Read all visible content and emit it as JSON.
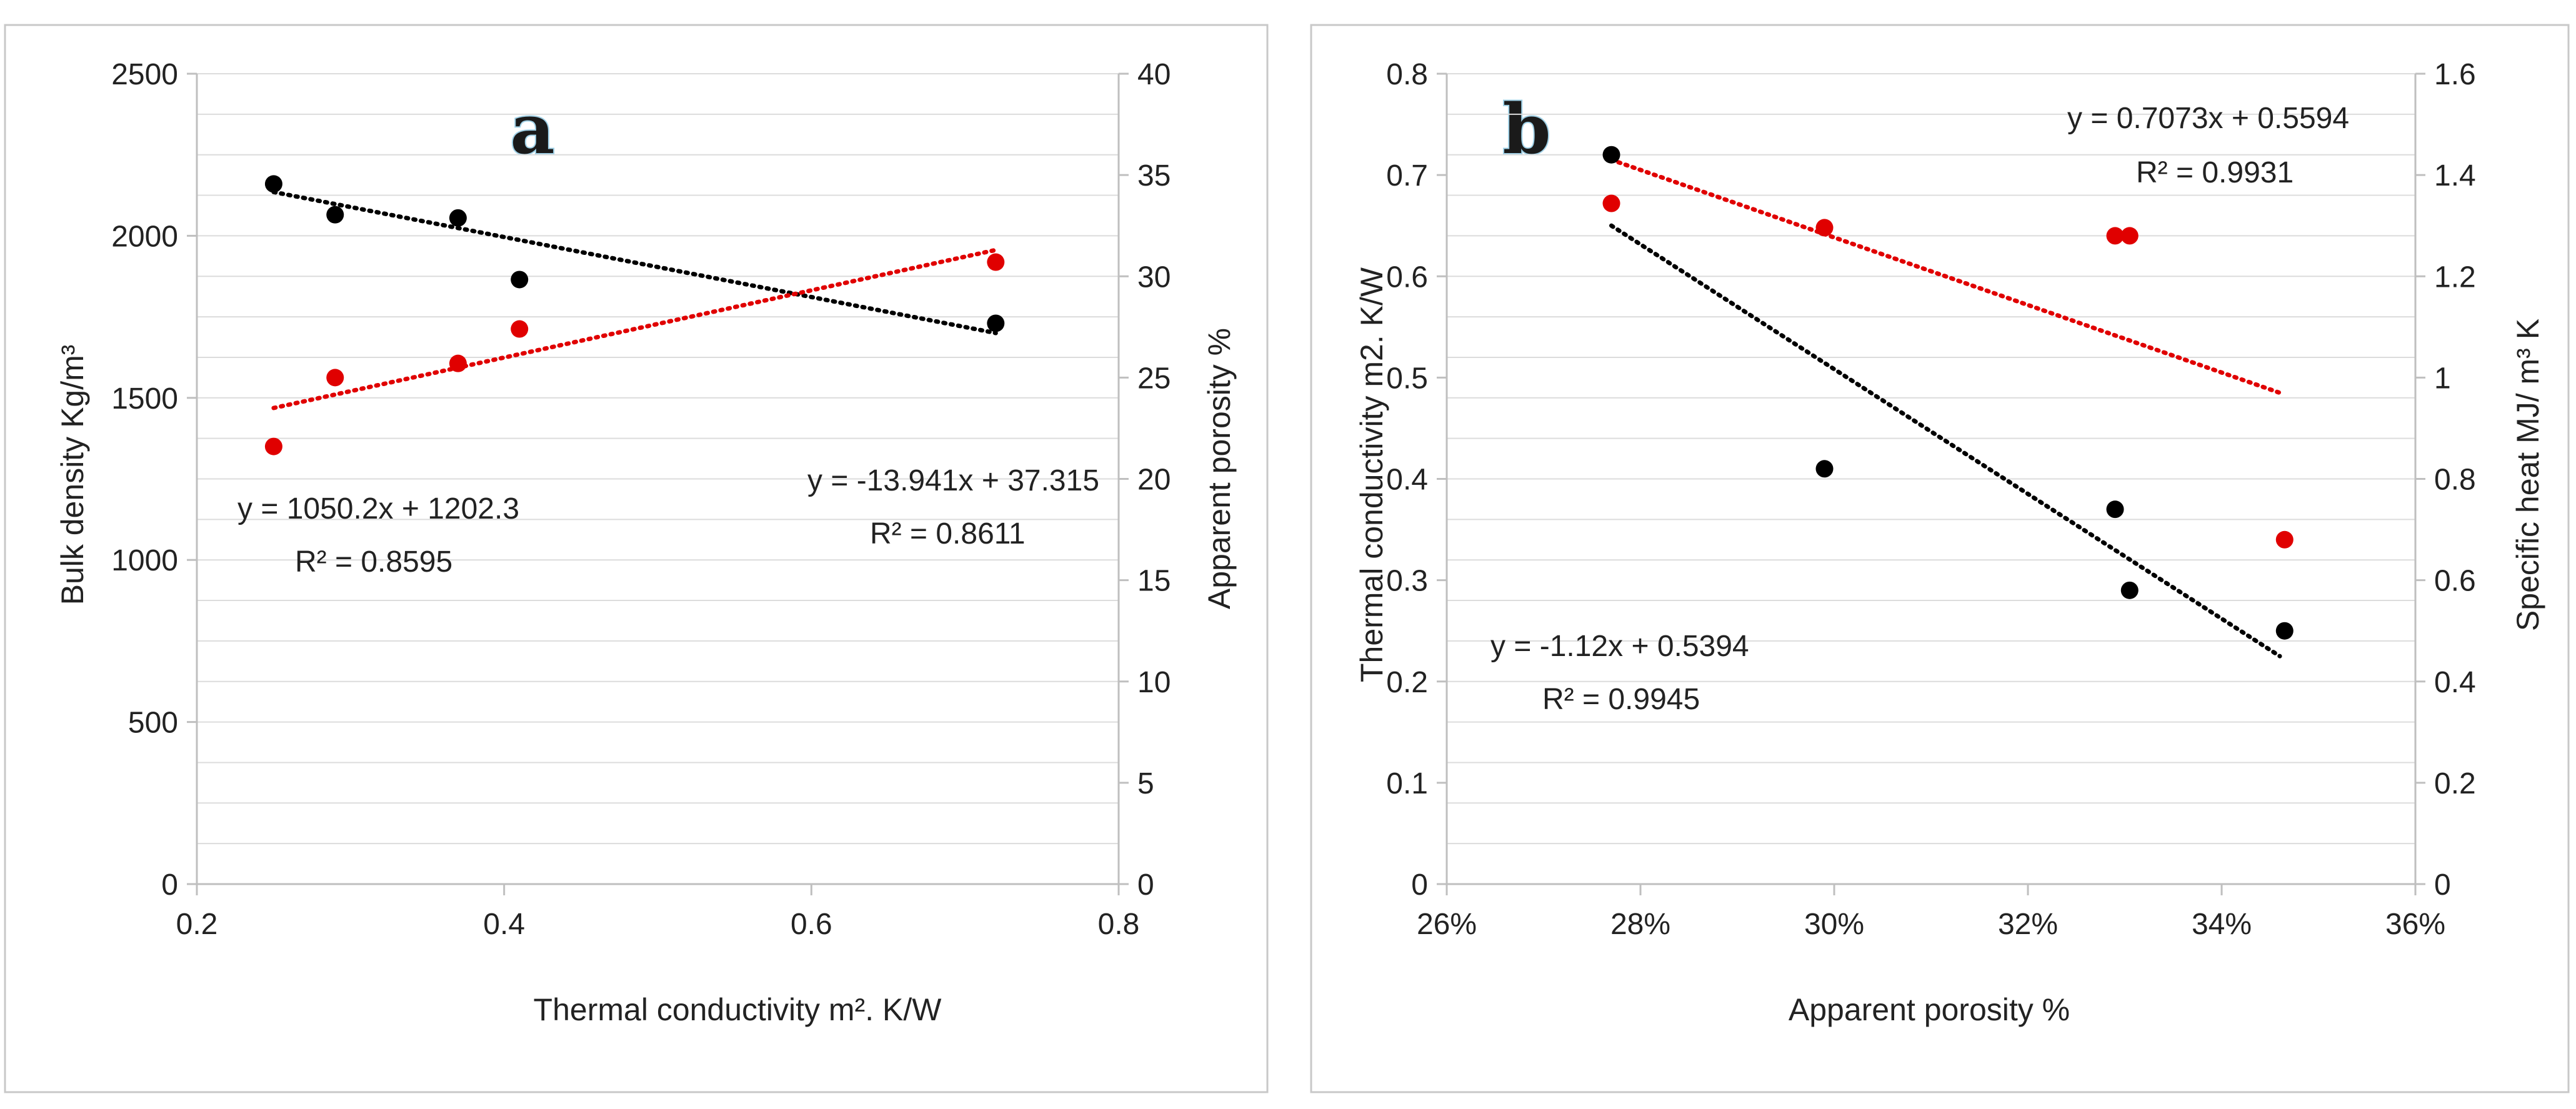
{
  "colors": {
    "black_series": "#000000",
    "red_series": "#e00000",
    "grid": "#dcdcdc"
  },
  "chart_data": [
    {
      "type": "scatter",
      "panel_label": "a",
      "x": {
        "label": "Thermal conductivity m². K/W",
        "min": 0.2,
        "max": 0.8,
        "ticks": [
          0.2,
          0.4,
          0.6,
          0.8
        ],
        "tick_labels": [
          "0.2",
          "0.4",
          "0.6",
          "0.8"
        ]
      },
      "y_left": {
        "label": "Bulk density Kg/m³",
        "min": 0,
        "max": 2500,
        "ticks": [
          0,
          500,
          1000,
          1500,
          2000,
          2500
        ],
        "tick_labels": [
          "0",
          "500",
          "1000",
          "1500",
          "2000",
          "2500"
        ]
      },
      "y_right": {
        "label": "Apparent porosity %",
        "min": 0,
        "max": 40,
        "ticks": [
          0,
          5,
          10,
          15,
          20,
          25,
          30,
          35,
          40
        ],
        "tick_labels": [
          "0",
          "5",
          "10",
          "15",
          "20",
          "25",
          "30",
          "35",
          "40"
        ]
      },
      "grid": "horizontal",
      "series": [
        {
          "color": "black",
          "axis": "left",
          "points": [
            [
              0.25,
              2160
            ],
            [
              0.29,
              2065
            ],
            [
              0.37,
              2055
            ],
            [
              0.41,
              1865
            ],
            [
              0.72,
              1730
            ]
          ],
          "trendline": {
            "x_range": [
              0.25,
              0.72
            ],
            "y_range": [
              2135,
              1700
            ]
          },
          "equation": "y = -13.941x + 37.315",
          "r2": "R² = 0.8611"
        },
        {
          "color": "red",
          "axis": "right",
          "points": [
            [
              0.25,
              21.6
            ],
            [
              0.29,
              25.0
            ],
            [
              0.37,
              25.7
            ],
            [
              0.41,
              27.4
            ],
            [
              0.72,
              30.7
            ]
          ],
          "trendline": {
            "x_range": [
              0.25,
              0.72
            ],
            "y_range": [
              23.5,
              31.3
            ]
          },
          "equation": "y = 1050.2x + 1202.3",
          "r2": "R² = 0.8595"
        }
      ]
    },
    {
      "type": "scatter",
      "panel_label": "b",
      "x": {
        "label": "Apparent porosity %",
        "min": 26,
        "max": 36,
        "ticks": [
          26,
          28,
          30,
          32,
          34,
          36
        ],
        "tick_labels": [
          "26%",
          "28%",
          "30%",
          "32%",
          "34%",
          "36%"
        ]
      },
      "y_left": {
        "label": "Thermal conductivity m2. K/W",
        "min": 0,
        "max": 0.8,
        "ticks": [
          0,
          0.1,
          0.2,
          0.3,
          0.4,
          0.5,
          0.6,
          0.7,
          0.8
        ],
        "tick_labels": [
          "0",
          "0.1",
          "0.2",
          "0.3",
          "0.4",
          "0.5",
          "0.6",
          "0.7",
          "0.8"
        ]
      },
      "y_right": {
        "label": "Specific heat MJ/ m³ K",
        "min": 0,
        "max": 1.6,
        "ticks": [
          0,
          0.2,
          0.4,
          0.6,
          0.8,
          1.0,
          1.2,
          1.4,
          1.6
        ],
        "tick_labels": [
          "0",
          "0.2",
          "0.4",
          "0.6",
          "0.8",
          "1",
          "1.2",
          "1.4",
          "1.6"
        ]
      },
      "grid": "horizontal",
      "series": [
        {
          "color": "black",
          "axis": "left",
          "points": [
            [
              27.7,
              0.72
            ],
            [
              29.9,
              0.41
            ],
            [
              32.9,
              0.37
            ],
            [
              33.05,
              0.29
            ],
            [
              34.65,
              0.25
            ]
          ],
          "trendline": {
            "x_range": [
              27.7,
              34.6
            ],
            "y_range": [
              0.65,
              0.225
            ]
          },
          "equation": "y = -1.12x + 0.5394",
          "r2": "R² = 0.9945"
        },
        {
          "color": "red",
          "axis": "right",
          "points": [
            [
              27.7,
              1.344
            ],
            [
              29.9,
              1.296
            ],
            [
              32.9,
              1.28
            ],
            [
              33.05,
              1.28
            ],
            [
              34.65,
              0.68
            ]
          ],
          "trendline": {
            "x_range": [
              27.7,
              34.6
            ],
            "y_range": [
              1.43,
              0.97
            ]
          },
          "equation": "y = 0.7073x + 0.5594",
          "r2": "R² = 0.9931"
        }
      ]
    }
  ]
}
